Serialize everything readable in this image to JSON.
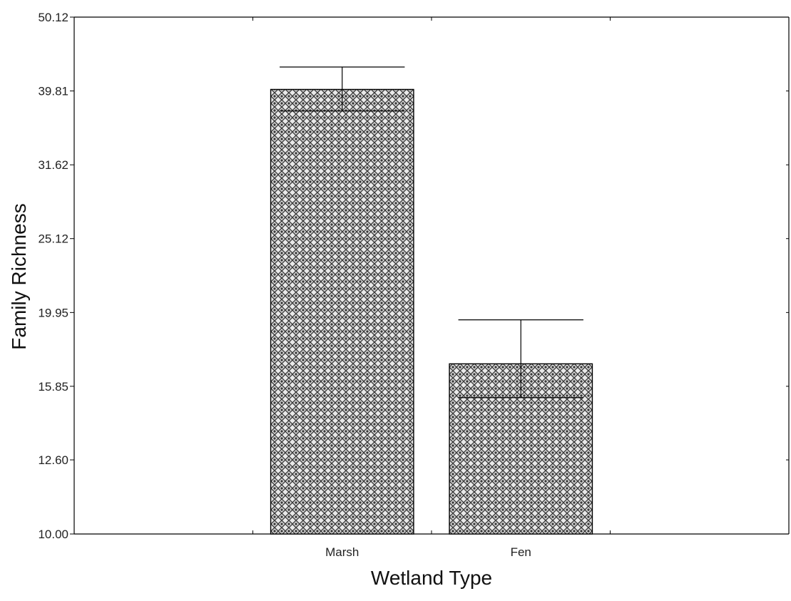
{
  "chart_data": {
    "type": "bar",
    "xlabel": "Wetland Type",
    "ylabel": "Family Richness",
    "y_scale": "log",
    "ylim": [
      10.0,
      50.12
    ],
    "y_ticks": [
      "10.00",
      "12.60",
      "15.85",
      "19.95",
      "25.12",
      "31.62",
      "39.81",
      "50.12"
    ],
    "categories": [
      "Marsh",
      "Fen"
    ],
    "values": [
      40.0,
      17.0
    ],
    "error_bars": {
      "upper": [
        42.9,
        19.5
      ],
      "lower": [
        37.4,
        15.3
      ]
    },
    "grid": false,
    "bar_fill": "crosshatch pattern",
    "colors": {
      "bar_pattern_dark": "#3a3a3a",
      "bar_pattern_light": "#e8e8e8",
      "axis": "#000000"
    }
  }
}
